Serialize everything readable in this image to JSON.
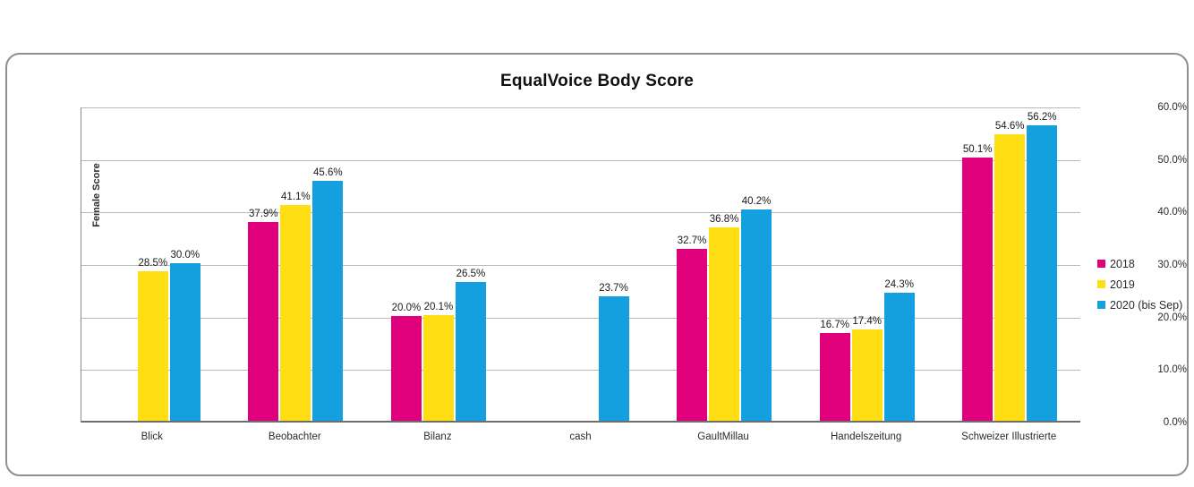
{
  "chart_data": {
    "type": "bar",
    "title": "EqualVoice Body Score",
    "xlabel": "",
    "ylabel": "Female Score",
    "ylim": [
      0,
      60
    ],
    "ytick_step": 10,
    "ytick_labels": [
      "0.0%",
      "10.0%",
      "20.0%",
      "30.0%",
      "40.0%",
      "50.0%",
      "60.0%"
    ],
    "grid": true,
    "legend_position": "right",
    "value_label_suffix": "%",
    "categories": [
      "Blick",
      "Beobachter",
      "Bilanz",
      "cash",
      "GaultMillau",
      "Handelszeitung",
      "Schweizer Illustrierte"
    ],
    "series": [
      {
        "name": "2018",
        "color": "#E0007B",
        "values": [
          null,
          37.9,
          20.0,
          null,
          32.7,
          16.7,
          50.1
        ]
      },
      {
        "name": "2019",
        "color": "#FFDE14",
        "values": [
          28.5,
          41.1,
          20.1,
          null,
          36.8,
          17.4,
          54.6
        ]
      },
      {
        "name": "2020 (bis Sep)",
        "color": "#14A0DF",
        "values": [
          30.0,
          45.6,
          26.5,
          23.7,
          40.2,
          24.3,
          56.2
        ]
      }
    ]
  }
}
